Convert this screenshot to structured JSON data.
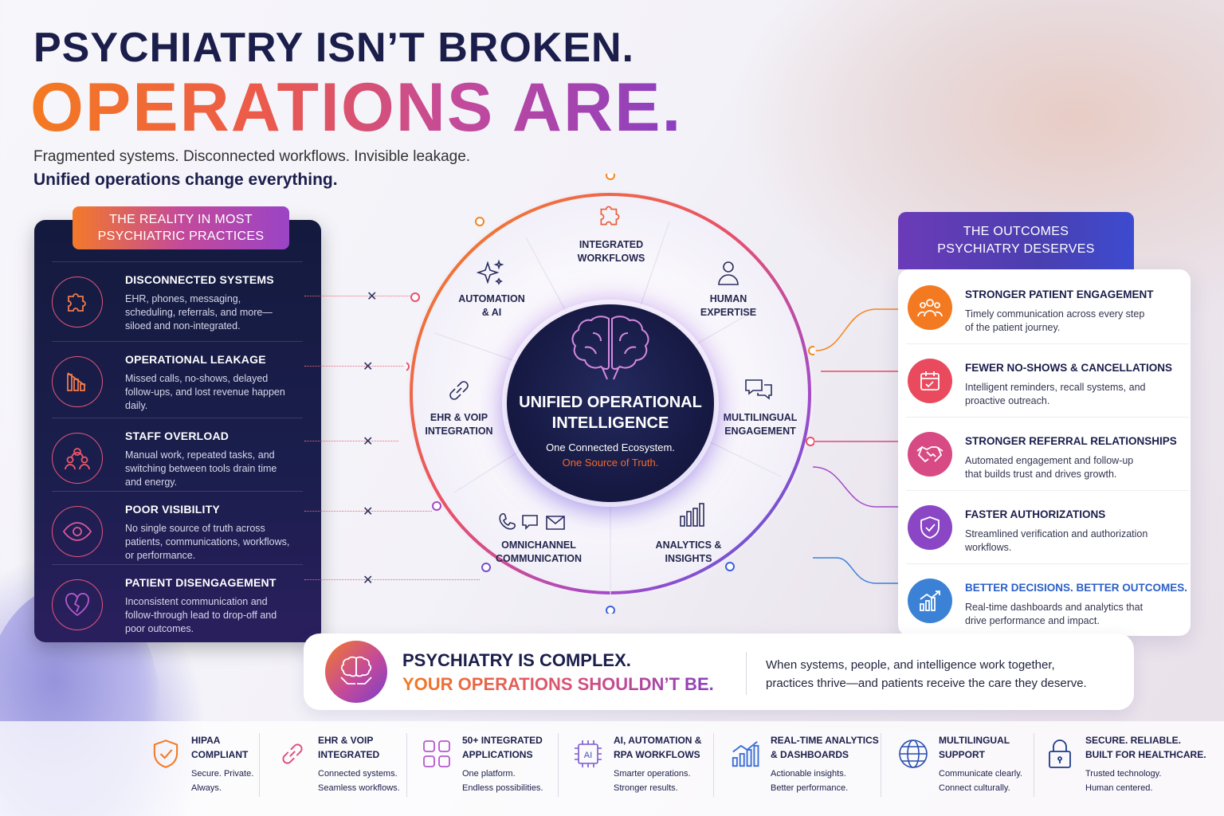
{
  "headline": {
    "line1": "PSYCHIATRY ISN’T BROKEN.",
    "line2": "OPERATIONS ARE.",
    "sub1": "Fragmented systems. Disconnected workflows. Invisible leakage.",
    "sub2": "Unified operations change everything."
  },
  "reality": {
    "header_line1": "THE REALITY IN MOST",
    "header_line2": "PSYCHIATRIC PRACTICES",
    "items": [
      {
        "title": "DISCONNECTED SYSTEMS",
        "desc": "EHR, phones, messaging, scheduling, referrals, and more—siloed and non-integrated.",
        "icon": "puzzle-icon"
      },
      {
        "title": "OPERATIONAL LEAKAGE",
        "desc": "Missed calls, no-shows, delayed follow-ups, and lost revenue happen daily.",
        "icon": "declining-bars-icon"
      },
      {
        "title": "STAFF OVERLOAD",
        "desc": "Manual work, repeated tasks, and switching between tools drain time and energy.",
        "icon": "group-icon"
      },
      {
        "title": "POOR VISIBILITY",
        "desc": "No single source of truth across patients, communications, workflows, or performance.",
        "icon": "eye-icon"
      },
      {
        "title": "PATIENT DISENGAGEMENT",
        "desc": "Inconsistent communication and follow-through lead to drop-off and poor outcomes.",
        "icon": "broken-heart-icon"
      }
    ]
  },
  "wheel": {
    "segments": [
      {
        "label1": "INTEGRATED",
        "label2": "WORKFLOWS",
        "icon": "puzzle-icon"
      },
      {
        "label1": "HUMAN",
        "label2": "EXPERTISE",
        "icon": "person-icon"
      },
      {
        "label1": "MULTILINGUAL",
        "label2": "ENGAGEMENT",
        "icon": "chat-bubbles-icon"
      },
      {
        "label1": "ANALYTICS &",
        "label2": "INSIGHTS",
        "icon": "bar-chart-icon"
      },
      {
        "label1": "OMNICHANNEL",
        "label2": "COMMUNICATION",
        "icon": "phone-chat-mail-icon"
      },
      {
        "label1": "EHR & VOIP",
        "label2": "INTEGRATION",
        "icon": "link-icon"
      },
      {
        "label1": "AUTOMATION",
        "label2": "& AI",
        "icon": "sparkles-icon"
      }
    ],
    "core": {
      "title1": "UNIFIED OPERATIONAL",
      "title2": "INTELLIGENCE",
      "sub1": "One Connected Ecosystem.",
      "sub2": "One Source of Truth."
    }
  },
  "outcomes": {
    "header_line1": "THE OUTCOMES",
    "header_line2": "PSYCHIATRY DESERVES",
    "items": [
      {
        "title": "STRONGER PATIENT ENGAGEMENT",
        "desc": "Timely communication across every step of the patient journey.",
        "icon": "users-icon",
        "color": "#f47a22"
      },
      {
        "title": "FEWER NO-SHOWS & CANCELLATIONS",
        "desc": "Intelligent reminders, recall systems, and proactive outreach.",
        "icon": "calendar-check-icon",
        "color": "#ea4a5e"
      },
      {
        "title": "STRONGER REFERRAL RELATIONSHIPS",
        "desc": "Automated engagement and follow-up that builds trust and drives growth.",
        "icon": "handshake-icon",
        "color": "#d84a84"
      },
      {
        "title": "FASTER AUTHORIZATIONS",
        "desc": "Streamlined verification and authorization workflows.",
        "icon": "shield-check-icon",
        "color": "#8a46c4"
      },
      {
        "title": "BETTER DECISIONS. BETTER OUTCOMES.",
        "desc": "Real-time dashboards and analytics that drive performance and impact.",
        "icon": "trend-chart-icon",
        "color": "#3b82d6"
      }
    ]
  },
  "banner": {
    "title1": "PSYCHIATRY IS COMPLEX.",
    "title2": "YOUR OPERATIONS SHOULDN’T BE.",
    "right1": "When systems, people, and intelligence work together,",
    "right2": "practices thrive—and patients receive the care they deserve.",
    "icon": "brain-hands-icon"
  },
  "features": [
    {
      "t1": "HIPAA",
      "t2": "COMPLIANT",
      "s1": "Secure. Private.",
      "s2": "Always.",
      "icon": "shield-check-icon"
    },
    {
      "t1": "EHR & VOIP",
      "t2": "INTEGRATED",
      "s1": "Connected systems.",
      "s2": "Seamless workflows.",
      "icon": "link-icon"
    },
    {
      "t1": "50+ INTEGRATED",
      "t2": "APPLICATIONS",
      "s1": "One platform.",
      "s2": "Endless possibilities.",
      "icon": "grid-icon"
    },
    {
      "t1": "AI, AUTOMATION &",
      "t2": "RPA WORKFLOWS",
      "s1": "Smarter operations.",
      "s2": "Stronger results.",
      "icon": "ai-chip-icon",
      "glyph": "AI"
    },
    {
      "t1": "REAL-TIME ANALYTICS",
      "t2": "& DASHBOARDS",
      "s1": "Actionable insights.",
      "s2": "Better performance.",
      "icon": "trend-chart-icon"
    },
    {
      "t1": "MULTILINGUAL",
      "t2": "SUPPORT",
      "s1": "Communicate clearly.",
      "s2": "Connect culturally.",
      "icon": "globe-icon"
    },
    {
      "t1": "SECURE. RELIABLE.",
      "t2": "BUILT FOR HEALTHCARE.",
      "s1": "Trusted technology.",
      "s2": "Human centered.",
      "icon": "lock-icon"
    }
  ]
}
